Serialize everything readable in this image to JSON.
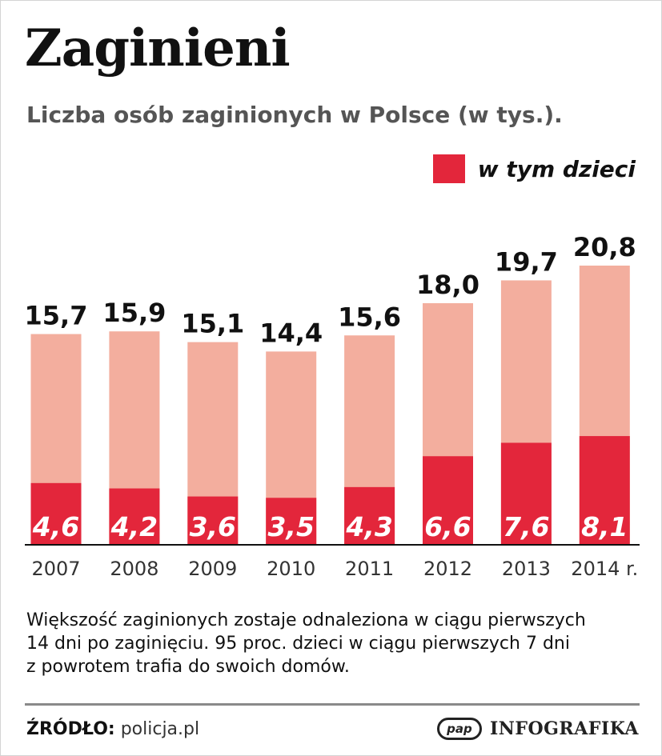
{
  "title": "Zaginieni",
  "subtitle": "Liczba osób zaginionych w Polsce (w tys.).",
  "legend": {
    "label": "w tym dzieci"
  },
  "colors": {
    "total": "#f3ae9e",
    "children": "#e3263b",
    "axis": "#111111"
  },
  "chart_data": {
    "type": "bar",
    "categories": [
      "2007",
      "2008",
      "2009",
      "2010",
      "2011",
      "2012",
      "2013",
      "2014 r."
    ],
    "series": [
      {
        "values": [
          15.7,
          15.9,
          15.1,
          14.4,
          15.6,
          18.0,
          19.7,
          20.8
        ]
      },
      {
        "name": "w tym dzieci",
        "values": [
          4.6,
          4.2,
          3.6,
          3.5,
          4.3,
          6.6,
          7.6,
          8.1
        ]
      }
    ],
    "total_labels": [
      "15,7",
      "15,9",
      "15,1",
      "14,4",
      "15,6",
      "18,0",
      "19,7",
      "20,8"
    ],
    "children_labels": [
      "4,6",
      "4,2",
      "3,6",
      "3,5",
      "4,3",
      "6,6",
      "7,6",
      "8,1"
    ],
    "title": "Zaginieni",
    "subtitle": "Liczba osób zaginionych w Polsce (w tys.).",
    "ylim": [
      0,
      20.8
    ],
    "grid": false,
    "legend_position": "top-right",
    "stacked": "overlay"
  },
  "note": {
    "lines": [
      "Większość zaginionych zostaje odnaleziona w ciągu pierwszych",
      "14 dni po zaginięciu. 95 proc. dzieci w ciągu pierwszych 7 dni",
      "z powrotem trafia do swoich domów."
    ]
  },
  "footer": {
    "source_label": "ŹRÓDŁO:",
    "source_value": "policja.pl",
    "logo_text": "pap",
    "brand_name": "INFOGRAFIKA"
  }
}
